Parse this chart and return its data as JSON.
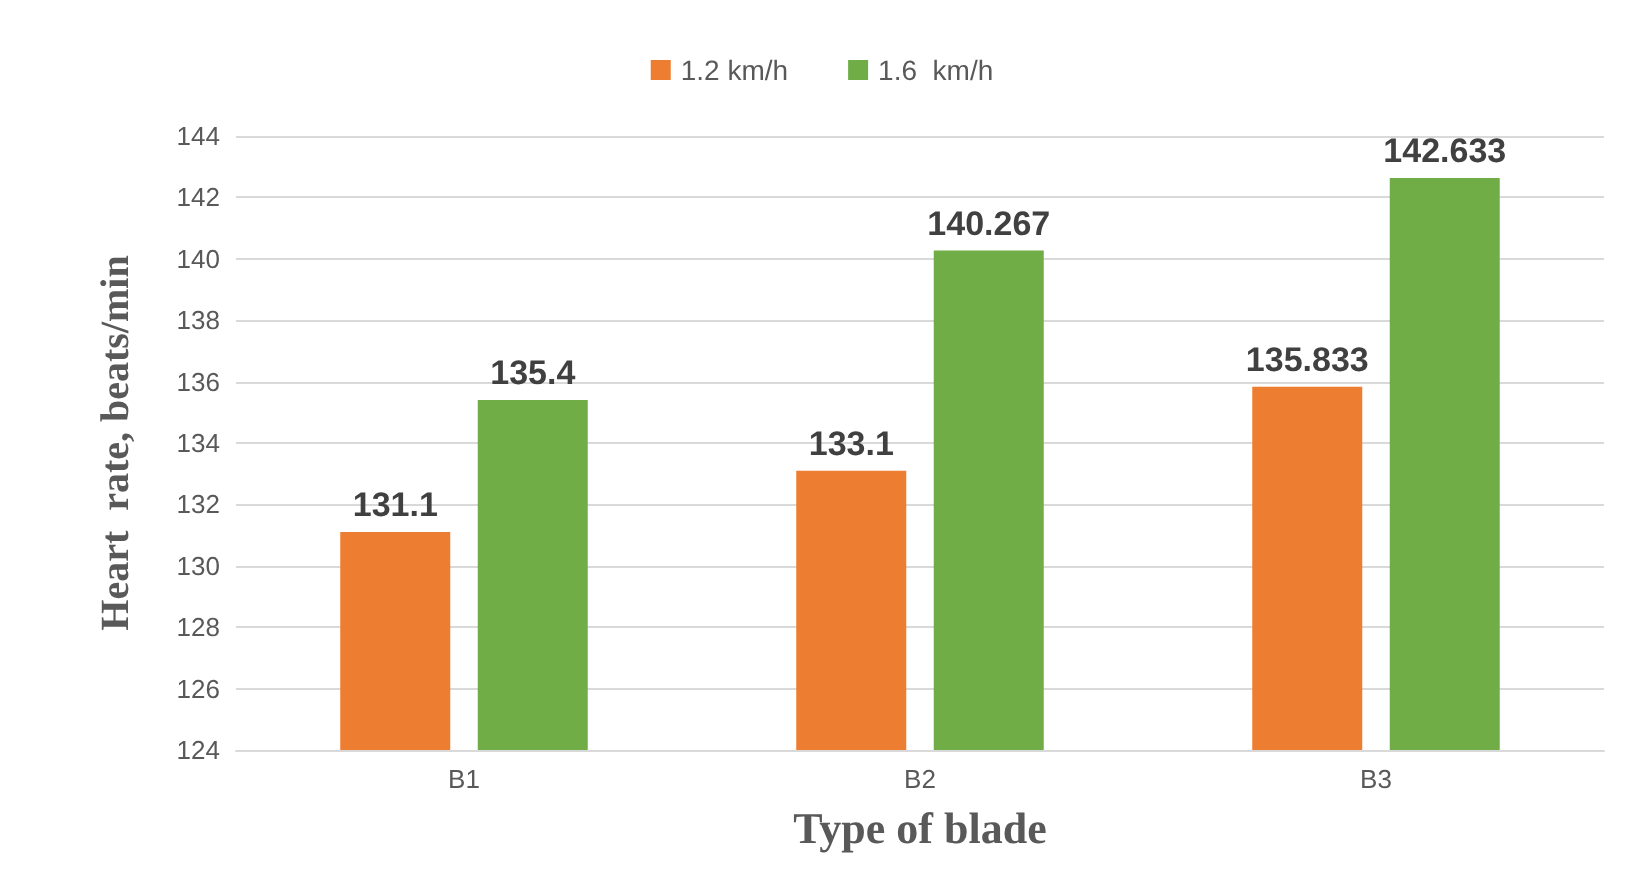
{
  "chart_data": {
    "type": "bar",
    "xlabel": "Type of blade",
    "ylabel": "Heart  rate, beats/min",
    "categories": [
      "B1",
      "B2",
      "B3"
    ],
    "series": [
      {
        "name": "1.2 km/h",
        "color": "#ed7d31",
        "values": [
          131.1,
          133.1,
          135.833
        ]
      },
      {
        "name": "1.6  km/h",
        "color": "#70ad47",
        "values": [
          135.4,
          140.267,
          142.633
        ]
      }
    ],
    "ylim": [
      124,
      144
    ],
    "yticks": [
      124,
      126,
      128,
      130,
      132,
      134,
      136,
      138,
      140,
      142,
      144
    ],
    "grid": "y",
    "legend": "top",
    "data_labels": true
  }
}
